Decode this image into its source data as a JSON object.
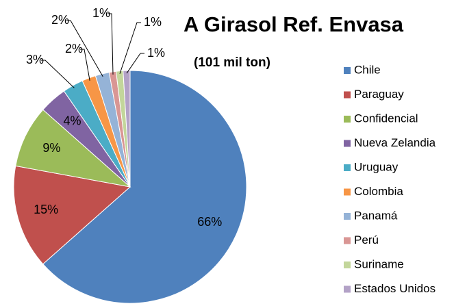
{
  "chart_data": {
    "type": "pie",
    "title": "A Girasol Ref. Envasa",
    "subtitle": "(101 mil ton)",
    "categories": [
      "Chile",
      "Paraguay",
      "Confidencial",
      "Nueva Zelandia",
      "Uruguay",
      "Colombia",
      "Panamá",
      "Perú",
      "Suriname",
      "Estados Unidos"
    ],
    "values": [
      66,
      15,
      9,
      4,
      3,
      2,
      2,
      1,
      1,
      1
    ],
    "value_labels": [
      "66%",
      "15%",
      "9%",
      "4%",
      "3%",
      "2%",
      "2%",
      "1%",
      "1%",
      "1%"
    ],
    "colors": [
      "#4f81bd",
      "#c0504d",
      "#9bbb59",
      "#8064a2",
      "#4bacc6",
      "#f79646",
      "#95b3d7",
      "#d99694",
      "#c3d69b",
      "#b3a2c7"
    ],
    "legend": "right"
  }
}
